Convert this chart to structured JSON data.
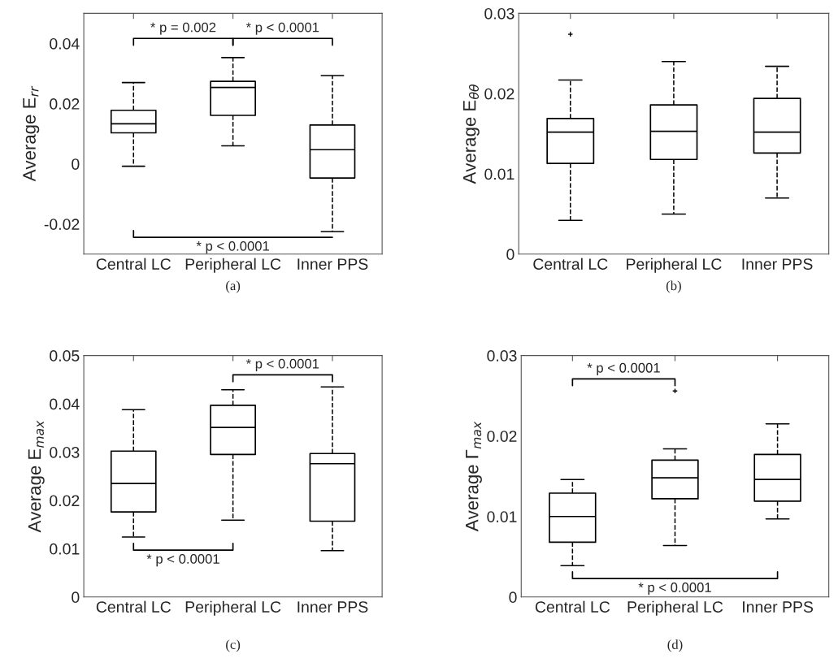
{
  "chart_data": [
    {
      "type": "box",
      "categories": [
        "Central LC",
        "Peripheral LC",
        "Inner PPS"
      ],
      "ylabel": "Average E$_{rr}$",
      "ylim": [
        -0.03,
        0.05
      ],
      "yticks": [
        -0.02,
        0,
        0.02,
        0.04
      ],
      "grid": false,
      "boxes": [
        {
          "low": -0.0008,
          "q1": 0.0103,
          "median": 0.0133,
          "q3": 0.0178,
          "high": 0.027
        },
        {
          "low": 0.006,
          "q1": 0.0161,
          "median": 0.0254,
          "q3": 0.0274,
          "high": 0.0353
        },
        {
          "low": -0.0225,
          "q1": -0.0047,
          "median": 0.0047,
          "q3": 0.0129,
          "high": 0.0293
        }
      ],
      "annotations": [
        "(a)",
        "* p = 0.002",
        "* p < 0.0001",
        "* p < 0.0001"
      ]
    },
    {
      "type": "box",
      "categories": [
        "Central LC",
        "Peripheral LC",
        "Inner PPS"
      ],
      "ylabel": "Average E$_{θθ}$",
      "ylim": [
        0,
        0.03
      ],
      "yticks": [
        0,
        0.01,
        0.02,
        0.03
      ],
      "grid": false,
      "boxes": [
        {
          "low": 0.0042,
          "q1": 0.0113,
          "median": 0.0152,
          "q3": 0.0169,
          "high": 0.0217,
          "outliers": [
            0.0274
          ]
        },
        {
          "low": 0.005,
          "q1": 0.0118,
          "median": 0.0153,
          "q3": 0.0186,
          "high": 0.024
        },
        {
          "low": 0.007,
          "q1": 0.0126,
          "median": 0.0152,
          "q3": 0.0194,
          "high": 0.0234
        }
      ],
      "annotations": [
        "(b)"
      ]
    },
    {
      "type": "box",
      "categories": [
        "Central LC",
        "Peripheral LC",
        "Inner PPS"
      ],
      "ylabel": "Average E$_{max}$",
      "ylim": [
        0,
        0.05
      ],
      "yticks": [
        0,
        0.01,
        0.02,
        0.03,
        0.04,
        0.05
      ],
      "grid": false,
      "boxes": [
        {
          "low": 0.0124,
          "q1": 0.0176,
          "median": 0.0235,
          "q3": 0.0302,
          "high": 0.0388
        },
        {
          "low": 0.0159,
          "q1": 0.0295,
          "median": 0.0351,
          "q3": 0.0397,
          "high": 0.0429
        },
        {
          "low": 0.0096,
          "q1": 0.0157,
          "median": 0.0276,
          "q3": 0.0297,
          "high": 0.0435
        }
      ],
      "annotations": [
        "(c)",
        "* p < 0.0001",
        "* p < 0.0001"
      ]
    },
    {
      "type": "box",
      "categories": [
        "Central LC",
        "Peripheral LC",
        "Inner PPS"
      ],
      "ylabel": "Average Γ$_{max}$",
      "ylim": [
        0,
        0.03
      ],
      "yticks": [
        0,
        0.01,
        0.02,
        0.03
      ],
      "grid": false,
      "boxes": [
        {
          "low": 0.0039,
          "q1": 0.0068,
          "median": 0.01,
          "q3": 0.0129,
          "high": 0.0146
        },
        {
          "low": 0.0064,
          "q1": 0.0122,
          "median": 0.0148,
          "q3": 0.017,
          "high": 0.0184,
          "outliers": [
            0.0256
          ]
        },
        {
          "low": 0.0097,
          "q1": 0.0119,
          "median": 0.0146,
          "q3": 0.0177,
          "high": 0.0215
        }
      ],
      "annotations": [
        "(d)",
        "* p < 0.0001",
        "* p < 0.0001"
      ]
    }
  ]
}
